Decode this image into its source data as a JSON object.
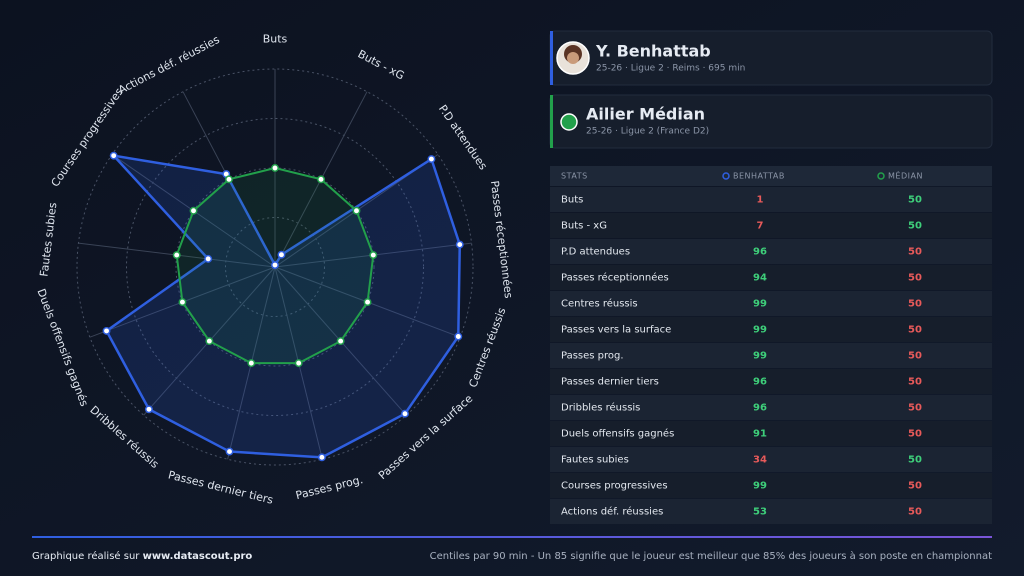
{
  "player": {
    "name": "Y. Benhattab",
    "info": "25-26 · Ligue 2 · Reims · 695 min"
  },
  "reference": {
    "name": "Ailier Médian",
    "info": "25-26 · Ligue 2 (France D2)"
  },
  "table_header": "STATS",
  "footer": {
    "credit_prefix": "Graphique réalisé sur ",
    "credit_site": "www.datascout.pro",
    "note": "Centiles par 90 min - Un 85 signifie que le joueur est meilleur que 85% des joueurs à son poste en championnat"
  },
  "chart_data": {
    "type": "radar",
    "categories": [
      "Buts",
      "Buts - xG",
      "P.D attendues",
      "Passes réceptionnées",
      "Centres réussis",
      "Passes vers la surface",
      "Passes prog.",
      "Passes dernier tiers",
      "Dribbles réussis",
      "Duels offensifs gagnés",
      "Fautes subies",
      "Courses progressives",
      "Actions déf. réussies"
    ],
    "series": [
      {
        "name": "Benhattab",
        "color": "#2f5fe0",
        "values": [
          1,
          7,
          96,
          94,
          99,
          99,
          99,
          96,
          96,
          91,
          34,
          99,
          53
        ]
      },
      {
        "name": "Médian",
        "color": "#22a04b",
        "values": [
          50,
          50,
          50,
          50,
          50,
          50,
          50,
          50,
          50,
          50,
          50,
          50,
          50
        ]
      }
    ],
    "ylim": [
      0,
      100
    ],
    "yticks": [
      25,
      50,
      75,
      100
    ],
    "grid": true
  }
}
